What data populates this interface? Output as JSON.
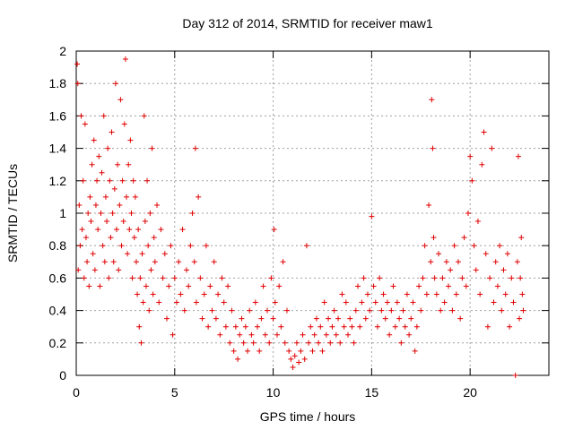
{
  "chart_data": {
    "type": "scatter",
    "title": "Day 312 of 2014, SRMTID for receiver maw1",
    "xlabel": "GPS time / hours",
    "ylabel": "SRMTID / TECUs",
    "xlim": [
      0,
      24
    ],
    "ylim": [
      0,
      2
    ],
    "x_ticks": [
      0,
      5,
      10,
      15,
      20
    ],
    "x_tick_labels": [
      "0",
      "5",
      "10",
      "15",
      "20"
    ],
    "y_ticks": [
      0,
      0.2,
      0.4,
      0.6,
      0.8,
      1,
      1.2,
      1.4,
      1.6,
      1.8,
      2
    ],
    "y_tick_labels": [
      "0",
      "0.2",
      "0.4",
      "0.6",
      "0.8",
      "1",
      "1.2",
      "1.4",
      "1.6",
      "1.8",
      "2"
    ],
    "grid": true,
    "marker": "+",
    "series": [
      {
        "name": "maw1",
        "color": "#e00000",
        "points": [
          [
            0.05,
            1.92
          ],
          [
            0.08,
            1.8
          ],
          [
            0.1,
            0.65
          ],
          [
            0.15,
            1.05
          ],
          [
            0.2,
            0.8
          ],
          [
            0.25,
            1.6
          ],
          [
            0.3,
            0.9
          ],
          [
            0.35,
            1.2
          ],
          [
            0.4,
            0.6
          ],
          [
            0.45,
            1.55
          ],
          [
            0.5,
            0.85
          ],
          [
            0.55,
            0.7
          ],
          [
            0.6,
            1.0
          ],
          [
            0.65,
            0.55
          ],
          [
            0.7,
            1.1
          ],
          [
            0.75,
            0.95
          ],
          [
            0.8,
            1.3
          ],
          [
            0.85,
            0.75
          ],
          [
            0.9,
            1.45
          ],
          [
            0.95,
            0.65
          ],
          [
            1.0,
            1.05
          ],
          [
            1.05,
            1.2
          ],
          [
            1.1,
            0.9
          ],
          [
            1.15,
            1.35
          ],
          [
            1.2,
            0.55
          ],
          [
            1.25,
            1.0
          ],
          [
            1.3,
            1.25
          ],
          [
            1.35,
            0.8
          ],
          [
            1.4,
            1.6
          ],
          [
            1.45,
            0.7
          ],
          [
            1.5,
            1.1
          ],
          [
            1.55,
            0.95
          ],
          [
            1.6,
            1.4
          ],
          [
            1.65,
            0.6
          ],
          [
            1.7,
            1.2
          ],
          [
            1.75,
            0.85
          ],
          [
            1.8,
            1.5
          ],
          [
            1.85,
            1.0
          ],
          [
            1.9,
            0.7
          ],
          [
            1.95,
            1.15
          ],
          [
            2.0,
            1.8
          ],
          [
            2.05,
            0.9
          ],
          [
            2.1,
            1.3
          ],
          [
            2.15,
            0.65
          ],
          [
            2.2,
            1.05
          ],
          [
            2.25,
            1.7
          ],
          [
            2.3,
            0.8
          ],
          [
            2.35,
            1.2
          ],
          [
            2.4,
            0.95
          ],
          [
            2.45,
            1.55
          ],
          [
            2.5,
            1.95
          ],
          [
            2.55,
            1.1
          ],
          [
            2.6,
            0.75
          ],
          [
            2.65,
            1.3
          ],
          [
            2.7,
            0.9
          ],
          [
            2.75,
            1.45
          ],
          [
            2.8,
            1.0
          ],
          [
            2.85,
            0.6
          ],
          [
            2.9,
            1.2
          ],
          [
            2.95,
            0.85
          ],
          [
            3.0,
            1.1
          ],
          [
            3.05,
            0.7
          ],
          [
            3.1,
            0.5
          ],
          [
            3.15,
            0.9
          ],
          [
            3.2,
            0.3
          ],
          [
            3.25,
            0.6
          ],
          [
            3.3,
            0.2
          ],
          [
            3.35,
            0.75
          ],
          [
            3.4,
            0.45
          ],
          [
            3.45,
            1.6
          ],
          [
            3.5,
            0.95
          ],
          [
            3.55,
            0.55
          ],
          [
            3.6,
            1.2
          ],
          [
            3.65,
            0.8
          ],
          [
            3.7,
            0.4
          ],
          [
            3.75,
            1.0
          ],
          [
            3.8,
            0.65
          ],
          [
            3.85,
            1.4
          ],
          [
            3.9,
            0.5
          ],
          [
            3.95,
            0.85
          ],
          [
            4.0,
            0.7
          ],
          [
            4.1,
            1.05
          ],
          [
            4.2,
            0.45
          ],
          [
            4.3,
            0.9
          ],
          [
            4.4,
            0.6
          ],
          [
            4.5,
            0.75
          ],
          [
            4.6,
            0.35
          ],
          [
            4.7,
            0.55
          ],
          [
            4.8,
            0.8
          ],
          [
            4.9,
            0.25
          ],
          [
            5.0,
            0.6
          ],
          [
            5.1,
            0.45
          ],
          [
            5.2,
            0.7
          ],
          [
            5.3,
            0.5
          ],
          [
            5.4,
            0.9
          ],
          [
            5.5,
            0.4
          ],
          [
            5.6,
            0.65
          ],
          [
            5.7,
            0.55
          ],
          [
            5.8,
            0.8
          ],
          [
            5.9,
            1.0
          ],
          [
            6.0,
            0.7
          ],
          [
            6.05,
            1.4
          ],
          [
            6.1,
            0.45
          ],
          [
            6.2,
            1.1
          ],
          [
            6.3,
            0.6
          ],
          [
            6.4,
            0.35
          ],
          [
            6.5,
            0.5
          ],
          [
            6.6,
            0.8
          ],
          [
            6.7,
            0.3
          ],
          [
            6.8,
            0.55
          ],
          [
            6.9,
            0.4
          ],
          [
            7.0,
            0.7
          ],
          [
            7.1,
            0.35
          ],
          [
            7.2,
            0.5
          ],
          [
            7.3,
            0.25
          ],
          [
            7.4,
            0.6
          ],
          [
            7.5,
            0.45
          ],
          [
            7.6,
            0.3
          ],
          [
            7.7,
            0.55
          ],
          [
            7.8,
            0.2
          ],
          [
            7.9,
            0.4
          ],
          [
            8.0,
            0.15
          ],
          [
            8.1,
            0.3
          ],
          [
            8.2,
            0.1
          ],
          [
            8.3,
            0.25
          ],
          [
            8.4,
            0.35
          ],
          [
            8.5,
            0.2
          ],
          [
            8.6,
            0.3
          ],
          [
            8.7,
            0.15
          ],
          [
            8.8,
            0.4
          ],
          [
            8.9,
            0.25
          ],
          [
            9.0,
            0.2
          ],
          [
            9.1,
            0.45
          ],
          [
            9.2,
            0.3
          ],
          [
            9.3,
            0.15
          ],
          [
            9.4,
            0.35
          ],
          [
            9.5,
            0.55
          ],
          [
            9.6,
            0.25
          ],
          [
            9.7,
            0.4
          ],
          [
            9.8,
            0.2
          ],
          [
            9.9,
            0.6
          ],
          [
            10.0,
            0.35
          ],
          [
            10.05,
            0.9
          ],
          [
            10.1,
            0.45
          ],
          [
            10.2,
            0.25
          ],
          [
            10.3,
            0.55
          ],
          [
            10.4,
            0.3
          ],
          [
            10.5,
            0.7
          ],
          [
            10.6,
            0.2
          ],
          [
            10.7,
            0.4
          ],
          [
            10.8,
            0.15
          ],
          [
            10.9,
            0.1
          ],
          [
            11.0,
            0.05
          ],
          [
            11.1,
            0.12
          ],
          [
            11.2,
            0.2
          ],
          [
            11.3,
            0.08
          ],
          [
            11.4,
            0.15
          ],
          [
            11.5,
            0.25
          ],
          [
            11.6,
            0.1
          ],
          [
            11.7,
            0.8
          ],
          [
            11.8,
            0.2
          ],
          [
            11.9,
            0.3
          ],
          [
            12.0,
            0.15
          ],
          [
            12.1,
            0.25
          ],
          [
            12.2,
            0.35
          ],
          [
            12.3,
            0.2
          ],
          [
            12.4,
            0.3
          ],
          [
            12.5,
            0.15
          ],
          [
            12.6,
            0.45
          ],
          [
            12.7,
            0.25
          ],
          [
            12.8,
            0.35
          ],
          [
            12.9,
            0.2
          ],
          [
            13.0,
            0.3
          ],
          [
            13.1,
            0.4
          ],
          [
            13.2,
            0.25
          ],
          [
            13.3,
            0.35
          ],
          [
            13.4,
            0.2
          ],
          [
            13.5,
            0.5
          ],
          [
            13.6,
            0.3
          ],
          [
            13.7,
            0.45
          ],
          [
            13.8,
            0.25
          ],
          [
            13.9,
            0.35
          ],
          [
            14.0,
            0.3
          ],
          [
            14.1,
            0.2
          ],
          [
            14.2,
            0.4
          ],
          [
            14.3,
            0.55
          ],
          [
            14.4,
            0.3
          ],
          [
            14.5,
            0.45
          ],
          [
            14.6,
            0.6
          ],
          [
            14.7,
            0.35
          ],
          [
            14.8,
            0.5
          ],
          [
            14.9,
            0.4
          ],
          [
            15.0,
            0.98
          ],
          [
            15.1,
            0.55
          ],
          [
            15.2,
            0.45
          ],
          [
            15.3,
            0.3
          ],
          [
            15.4,
            0.6
          ],
          [
            15.5,
            0.4
          ],
          [
            15.6,
            0.5
          ],
          [
            15.7,
            0.35
          ],
          [
            15.8,
            0.45
          ],
          [
            15.9,
            0.25
          ],
          [
            16.0,
            0.4
          ],
          [
            16.1,
            0.55
          ],
          [
            16.2,
            0.3
          ],
          [
            16.3,
            0.45
          ],
          [
            16.4,
            0.35
          ],
          [
            16.5,
            0.2
          ],
          [
            16.6,
            0.4
          ],
          [
            16.7,
            0.3
          ],
          [
            16.8,
            0.5
          ],
          [
            16.9,
            0.25
          ],
          [
            17.0,
            0.35
          ],
          [
            17.1,
            0.45
          ],
          [
            17.2,
            0.15
          ],
          [
            17.3,
            0.3
          ],
          [
            17.4,
            0.55
          ],
          [
            17.5,
            0.4
          ],
          [
            17.6,
            0.6
          ],
          [
            17.7,
            0.8
          ],
          [
            17.8,
            0.5
          ],
          [
            17.9,
            1.05
          ],
          [
            18.0,
            0.7
          ],
          [
            18.05,
            1.7
          ],
          [
            18.1,
            1.4
          ],
          [
            18.15,
            0.85
          ],
          [
            18.2,
            0.6
          ],
          [
            18.3,
            0.5
          ],
          [
            18.4,
            0.75
          ],
          [
            18.5,
            0.4
          ],
          [
            18.6,
            0.6
          ],
          [
            18.7,
            0.45
          ],
          [
            18.8,
            0.7
          ],
          [
            18.9,
            0.55
          ],
          [
            19.0,
            0.65
          ],
          [
            19.1,
            0.4
          ],
          [
            19.2,
            0.8
          ],
          [
            19.3,
            0.5
          ],
          [
            19.4,
            0.7
          ],
          [
            19.5,
            0.35
          ],
          [
            19.6,
            0.6
          ],
          [
            19.7,
            0.85
          ],
          [
            19.8,
            0.55
          ],
          [
            19.9,
            1.0
          ],
          [
            20.0,
            1.35
          ],
          [
            20.1,
            1.2
          ],
          [
            20.2,
            0.8
          ],
          [
            20.3,
            0.65
          ],
          [
            20.4,
            0.95
          ],
          [
            20.5,
            0.5
          ],
          [
            20.6,
            1.3
          ],
          [
            20.7,
            1.5
          ],
          [
            20.8,
            0.75
          ],
          [
            20.9,
            0.3
          ],
          [
            21.0,
            0.6
          ],
          [
            21.1,
            1.4
          ],
          [
            21.2,
            0.45
          ],
          [
            21.3,
            0.7
          ],
          [
            21.4,
            0.55
          ],
          [
            21.5,
            0.8
          ],
          [
            21.6,
            0.4
          ],
          [
            21.7,
            0.65
          ],
          [
            21.8,
            0.5
          ],
          [
            21.9,
            0.75
          ],
          [
            22.0,
            0.3
          ],
          [
            22.1,
            0.6
          ],
          [
            22.2,
            0.45
          ],
          [
            22.3,
            0.0
          ],
          [
            22.4,
            0.7
          ],
          [
            22.45,
            1.35
          ],
          [
            22.5,
            0.35
          ],
          [
            22.55,
            0.6
          ],
          [
            22.6,
            0.85
          ],
          [
            22.65,
            0.5
          ],
          [
            22.7,
            0.4
          ]
        ]
      }
    ]
  }
}
